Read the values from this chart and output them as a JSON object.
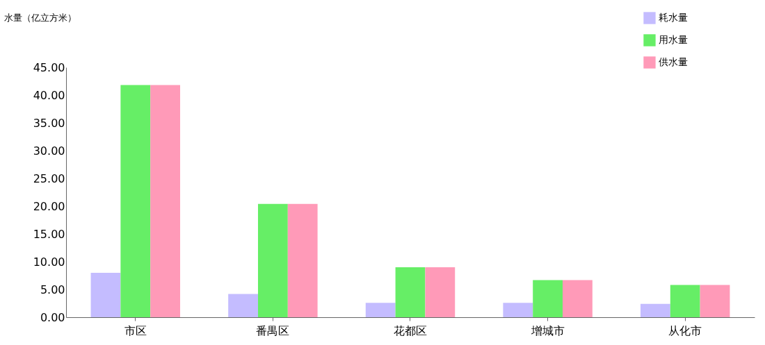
{
  "chart_data": {
    "type": "bar",
    "ylabel": "水量（亿立方米）",
    "categories": [
      "市区",
      "番禺区",
      "花都区",
      "增城市",
      "从化市"
    ],
    "series": [
      {
        "name": "耗水量",
        "color": "#c4bcff",
        "values": [
          8.0,
          4.2,
          2.6,
          2.6,
          2.4
        ]
      },
      {
        "name": "用水量",
        "color": "#66ee66",
        "values": [
          41.8,
          20.4,
          9.0,
          6.7,
          5.8
        ]
      },
      {
        "name": "供水量",
        "color": "#ff9ab8",
        "values": [
          41.8,
          20.4,
          9.0,
          6.7,
          5.8
        ]
      }
    ],
    "ylim": [
      0,
      45
    ],
    "yticks": [
      {
        "value": 0,
        "label": "0.00"
      },
      {
        "value": 5,
        "label": "5.00"
      },
      {
        "value": 10,
        "label": "10.00"
      },
      {
        "value": 15,
        "label": "15.00"
      },
      {
        "value": 20,
        "label": "20.00"
      },
      {
        "value": 25,
        "label": "25.00"
      },
      {
        "value": 30,
        "label": "30.00"
      },
      {
        "value": 35,
        "label": "35.00"
      },
      {
        "value": 40,
        "label": "40.00"
      },
      {
        "value": 45,
        "label": "45.00"
      }
    ],
    "legend": "top right",
    "grid": false
  }
}
